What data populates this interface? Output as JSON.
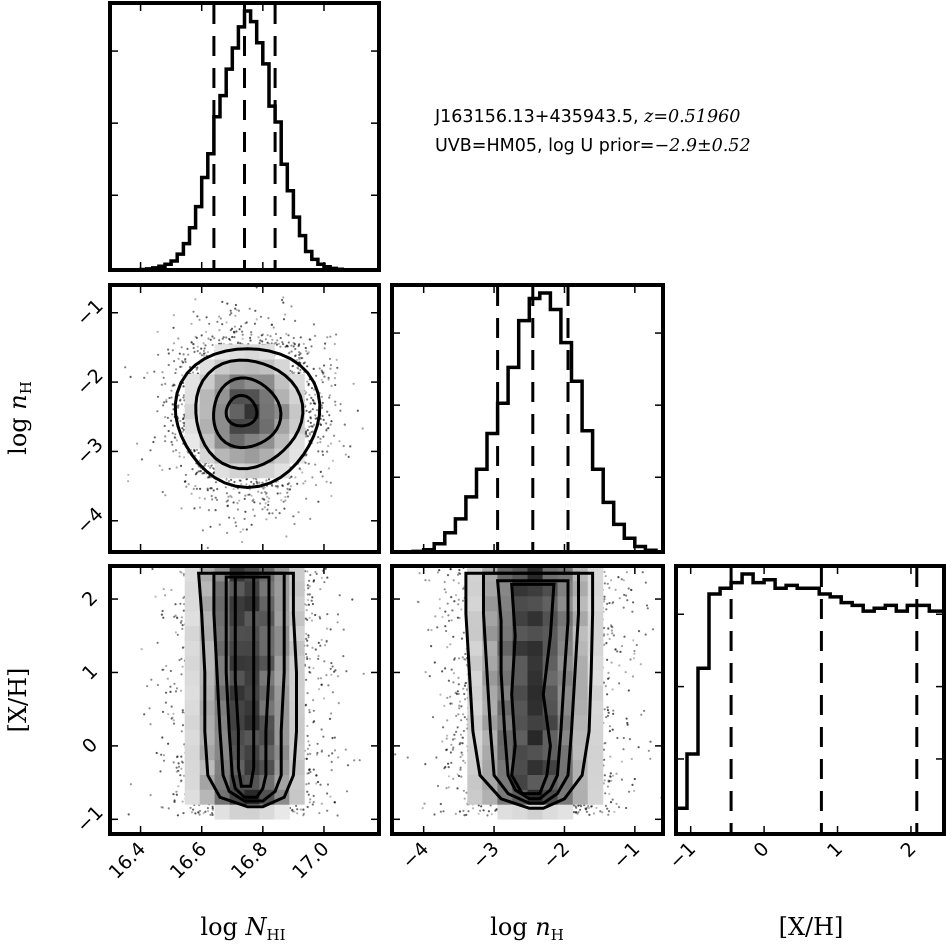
{
  "chart_data": {
    "type": "corner",
    "annotation": {
      "line1_text": "J163156.13+435943.5, ",
      "line1_math": "z=0.51960",
      "line2_text": "UVB=HM05, log U prior=",
      "line2_math": "−2.9±0.52"
    },
    "parameters": [
      {
        "key": "logN",
        "xlabel": "log N_HI",
        "xlabel_main": "log ",
        "xlabel_var": "N",
        "xlabel_sub": "HI",
        "ylabel": "",
        "range": [
          16.3,
          17.18
        ],
        "ticks": [
          16.4,
          16.6,
          16.8,
          17.0
        ],
        "tick_labels": [
          "16.4",
          "16.6",
          "16.8",
          "17.0"
        ],
        "quantiles": [
          16.64,
          16.74,
          16.84
        ],
        "hist_bins": [
          16.3,
          16.32,
          16.34,
          16.36,
          16.38,
          16.4,
          16.42,
          16.44,
          16.46,
          16.48,
          16.5,
          16.52,
          16.54,
          16.56,
          16.58,
          16.6,
          16.62,
          16.64,
          16.66,
          16.68,
          16.7,
          16.72,
          16.74,
          16.76,
          16.78,
          16.8,
          16.82,
          16.84,
          16.86,
          16.88,
          16.9,
          16.92,
          16.94,
          16.96,
          16.98,
          17.0,
          17.02,
          17.04,
          17.06,
          17.08,
          17.1,
          17.12,
          17.14,
          17.16,
          17.18
        ],
        "hist_values": [
          0,
          0,
          0,
          0,
          0,
          0.002,
          0.004,
          0.008,
          0.014,
          0.022,
          0.034,
          0.06,
          0.1,
          0.16,
          0.24,
          0.35,
          0.44,
          0.58,
          0.66,
          0.76,
          0.84,
          0.92,
          0.98,
          0.94,
          0.86,
          0.78,
          0.62,
          0.56,
          0.4,
          0.3,
          0.2,
          0.13,
          0.07,
          0.04,
          0.022,
          0.012,
          0.006,
          0.003,
          0.001,
          0,
          0,
          0,
          0,
          0
        ]
      },
      {
        "key": "lognH",
        "xlabel": "log n_H",
        "xlabel_main": "log ",
        "xlabel_var": "n",
        "xlabel_sub": "H",
        "ylabel": "log n_H",
        "range": [
          -4.45,
          -0.6
        ],
        "ticks": [
          -4,
          -3,
          -2,
          -1
        ],
        "tick_labels": [
          "−4",
          "−3",
          "−2",
          "−1"
        ],
        "quantiles": [
          -2.95,
          -2.45,
          -1.95
        ],
        "hist_bins": [
          -4.45,
          -4.3,
          -4.15,
          -4.0,
          -3.85,
          -3.7,
          -3.55,
          -3.4,
          -3.25,
          -3.1,
          -2.95,
          -2.8,
          -2.65,
          -2.5,
          -2.35,
          -2.2,
          -2.05,
          -1.9,
          -1.75,
          -1.6,
          -1.45,
          -1.3,
          -1.15,
          -1.0,
          -0.85,
          -0.7,
          -0.6
        ],
        "hist_values": [
          0,
          0,
          0.002,
          0.008,
          0.03,
          0.07,
          0.12,
          0.2,
          0.3,
          0.43,
          0.54,
          0.67,
          0.84,
          0.92,
          0.94,
          0.88,
          0.76,
          0.62,
          0.44,
          0.3,
          0.18,
          0.1,
          0.05,
          0.02,
          0.006,
          0.001
        ]
      },
      {
        "key": "XH",
        "xlabel": "[X/H]",
        "ylabel": "[X/H]",
        "range": [
          -1.2,
          2.45
        ],
        "ticks": [
          -1,
          0,
          1,
          2
        ],
        "tick_labels": [
          "−1",
          "0",
          "1",
          "2"
        ],
        "quantiles": [
          -0.45,
          0.78,
          2.08
        ],
        "hist_bins": [
          -1.2,
          -1.05,
          -0.9,
          -0.75,
          -0.6,
          -0.45,
          -0.3,
          -0.15,
          0.0,
          0.15,
          0.3,
          0.45,
          0.6,
          0.75,
          0.9,
          1.05,
          1.2,
          1.35,
          1.5,
          1.65,
          1.8,
          1.95,
          2.1,
          2.25,
          2.4,
          2.45
        ],
        "hist_values": [
          0.09,
          0.28,
          0.58,
          0.84,
          0.86,
          0.88,
          0.91,
          0.88,
          0.89,
          0.86,
          0.87,
          0.86,
          0.86,
          0.84,
          0.83,
          0.81,
          0.8,
          0.78,
          0.79,
          0.8,
          0.78,
          0.8,
          0.8,
          0.78,
          0.78
        ]
      }
    ],
    "joint": [
      {
        "x": "logN",
        "y": "lognH",
        "mean": [
          16.75,
          -2.45
        ],
        "sigma": [
          0.1,
          0.5
        ],
        "contours": [
          {
            "cx": 16.75,
            "cy": -2.48,
            "rx": 0.235,
            "ry": 1.0
          },
          {
            "cx": 16.75,
            "cy": -2.45,
            "rx": 0.175,
            "ry": 0.78
          },
          {
            "cx": 16.745,
            "cy": -2.45,
            "rx": 0.11,
            "ry": 0.5
          },
          {
            "cx": 16.73,
            "cy": -2.42,
            "rx": 0.05,
            "ry": 0.22
          }
        ]
      },
      {
        "x": "logN",
        "y": "XH",
        "mean": [
          16.75,
          0.75
        ],
        "sigma": [
          0.1,
          0.9
        ],
        "contours": [
          {
            "xl": [
              16.59,
              16.6,
              16.61,
              16.61,
              16.62,
              16.66,
              16.75
            ],
            "xr": [
              16.9,
              16.9,
              16.91,
              16.91,
              16.9,
              16.87,
              16.8
            ],
            "y": [
              2.35,
              1.8,
              1.0,
              0.2,
              -0.4,
              -0.7,
              -0.83
            ]
          },
          {
            "xl": [
              16.64,
              16.64,
              16.65,
              16.66,
              16.67,
              16.69,
              16.74
            ],
            "xr": [
              16.87,
              16.87,
              16.87,
              16.86,
              16.86,
              16.84,
              16.8
            ],
            "y": [
              2.35,
              1.8,
              1.0,
              0.2,
              -0.4,
              -0.62,
              -0.75
            ]
          },
          {
            "xl": [
              16.68,
              16.68,
              16.68,
              16.69,
              16.7,
              16.71,
              16.74
            ],
            "xr": [
              16.82,
              16.82,
              16.82,
              16.81,
              16.81,
              16.8,
              16.78
            ],
            "y": [
              2.3,
              1.8,
              1.0,
              0.2,
              -0.4,
              -0.58,
              -0.7
            ]
          },
          {
            "xl": [
              16.71,
              16.71,
              16.71,
              16.72,
              16.72,
              16.73
            ],
            "xr": [
              16.77,
              16.77,
              16.77,
              16.77,
              16.77,
              16.76
            ],
            "y": [
              2.3,
              1.6,
              0.9,
              0.2,
              -0.3,
              -0.55
            ]
          }
        ]
      },
      {
        "x": "lognH",
        "y": "XH",
        "mean": [
          -2.45,
          0.75
        ],
        "sigma": [
          0.5,
          0.9
        ],
        "contours": [
          {
            "xl": [
              -3.4,
              -3.4,
              -3.35,
              -3.3,
              -3.2,
              -2.9,
              -2.5
            ],
            "xr": [
              -1.6,
              -1.6,
              -1.62,
              -1.65,
              -1.75,
              -2.0,
              -2.3
            ],
            "y": [
              2.35,
              1.8,
              1.0,
              0.2,
              -0.4,
              -0.72,
              -0.85
            ]
          },
          {
            "xl": [
              -3.15,
              -3.15,
              -3.1,
              -3.05,
              -3.0,
              -2.8,
              -2.5
            ],
            "xr": [
              -1.8,
              -1.8,
              -1.85,
              -1.9,
              -1.95,
              -2.1,
              -2.3
            ],
            "y": [
              2.35,
              1.8,
              1.0,
              0.2,
              -0.4,
              -0.65,
              -0.78
            ]
          },
          {
            "xl": [
              -2.95,
              -2.9,
              -2.9,
              -2.85,
              -2.8,
              -2.7,
              -2.5
            ],
            "xr": [
              -1.95,
              -1.95,
              -2.0,
              -2.05,
              -2.1,
              -2.2,
              -2.35
            ],
            "y": [
              2.25,
              1.7,
              1.0,
              0.2,
              -0.4,
              -0.6,
              -0.72
            ]
          },
          {
            "xl": [
              -2.75,
              -2.7,
              -2.75,
              -2.7,
              -2.75,
              -2.6
            ],
            "xr": [
              -2.15,
              -2.2,
              -2.3,
              -2.2,
              -2.25,
              -2.35
            ],
            "y": [
              2.2,
              1.5,
              0.7,
              0.0,
              -0.4,
              -0.65
            ]
          }
        ]
      }
    ]
  }
}
